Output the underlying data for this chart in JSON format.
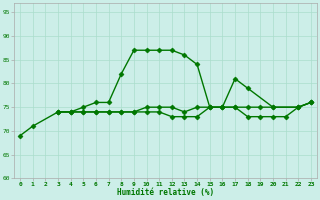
{
  "xlabel": "Humidité relative (%)",
  "xlim": [
    -0.5,
    23.5
  ],
  "ylim": [
    60,
    97
  ],
  "yticks": [
    60,
    65,
    70,
    75,
    80,
    85,
    90,
    95
  ],
  "xticks": [
    0,
    1,
    2,
    3,
    4,
    5,
    6,
    7,
    8,
    9,
    10,
    11,
    12,
    13,
    14,
    15,
    16,
    17,
    18,
    19,
    20,
    21,
    22,
    23
  ],
  "background_color": "#cceee8",
  "grid_color": "#aaddcc",
  "line_color": "#007700",
  "marker": "D",
  "marker_size": 2.5,
  "linewidth": 1.0,
  "curve1_x": [
    0,
    1,
    3,
    4,
    5,
    6,
    7,
    8,
    9,
    10,
    11,
    12,
    13,
    14,
    15,
    16,
    17,
    18,
    20,
    22,
    23
  ],
  "curve1_y": [
    69,
    71,
    74,
    74,
    75,
    76,
    76,
    82,
    87,
    87,
    87,
    87,
    86,
    84,
    75,
    75,
    81,
    79,
    75,
    75,
    76
  ],
  "curve2_x": [
    3,
    4,
    5,
    6,
    7,
    8,
    9,
    10,
    11,
    12,
    13,
    14,
    15,
    16,
    17,
    18,
    19,
    20,
    22,
    23
  ],
  "curve2_y": [
    74,
    74,
    74,
    74,
    74,
    74,
    74,
    75,
    75,
    75,
    74,
    75,
    75,
    75,
    75,
    75,
    75,
    75,
    75,
    76
  ],
  "curve3_x": [
    3,
    4,
    5,
    6,
    7,
    8,
    9,
    10,
    11,
    12,
    13,
    14,
    15,
    16,
    17,
    18,
    19,
    20,
    21,
    22,
    23
  ],
  "curve3_y": [
    74,
    74,
    74,
    74,
    74,
    74,
    74,
    74,
    74,
    73,
    73,
    73,
    75,
    75,
    75,
    73,
    73,
    73,
    73,
    75,
    76
  ]
}
